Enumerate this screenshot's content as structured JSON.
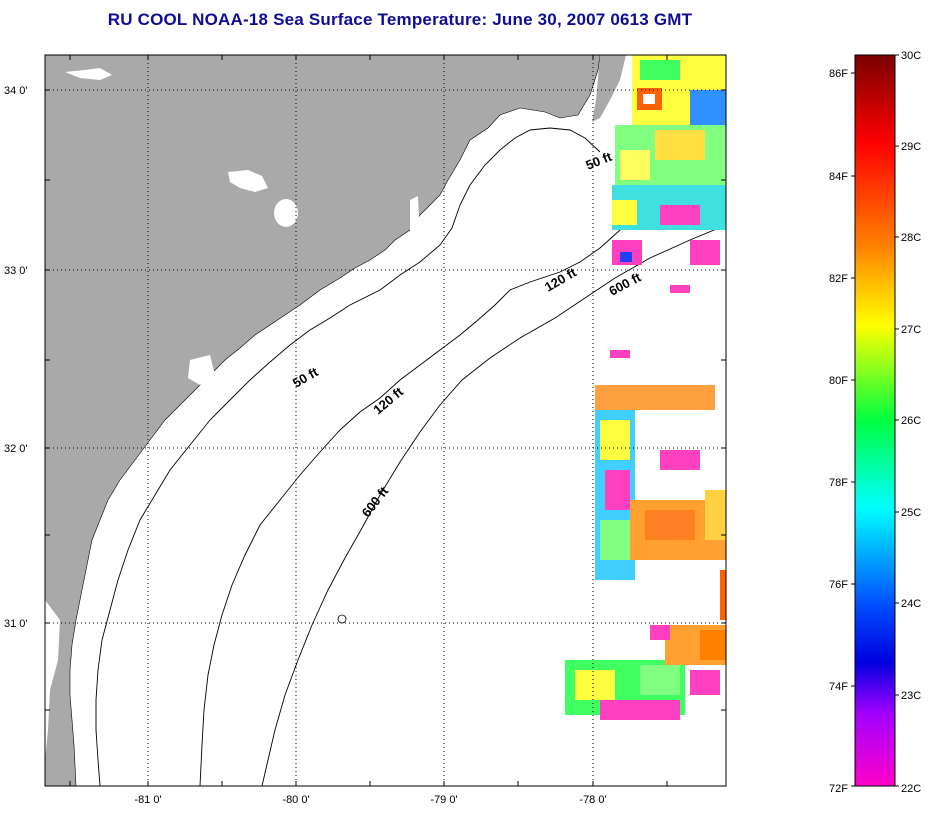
{
  "title": "RU COOL  NOAA-18  Sea Surface Temperature:  June 30, 2007 0613 GMT",
  "colors": {
    "land": "#a9a9a9",
    "ocean": "#ffffff",
    "title": "#0d0d9a"
  },
  "map": {
    "lon_ticks": [
      "-81 0'",
      "-80 0'",
      "-79 0'",
      "-78 0'"
    ],
    "lat_ticks": [
      "34 0'",
      "33 0'",
      "32 0'",
      "31 0'"
    ],
    "isobaths": [
      "50 ft",
      "50 ft",
      "120 ft",
      "120 ft",
      "600 ft",
      "600 ft"
    ]
  },
  "colorbar": {
    "fahrenheit": [
      "86F",
      "84F",
      "82F",
      "80F",
      "78F",
      "76F",
      "74F",
      "72F"
    ],
    "celsius": [
      "30C",
      "29C",
      "28C",
      "27C",
      "26C",
      "25C",
      "24C",
      "23C",
      "22C"
    ],
    "gradient_stops": [
      "#7a0000",
      "#ff0000",
      "#ff8000",
      "#ffff00",
      "#00ff40",
      "#00ffff",
      "#0050ff",
      "#0000e0",
      "#a000ff",
      "#ff00c8"
    ]
  }
}
